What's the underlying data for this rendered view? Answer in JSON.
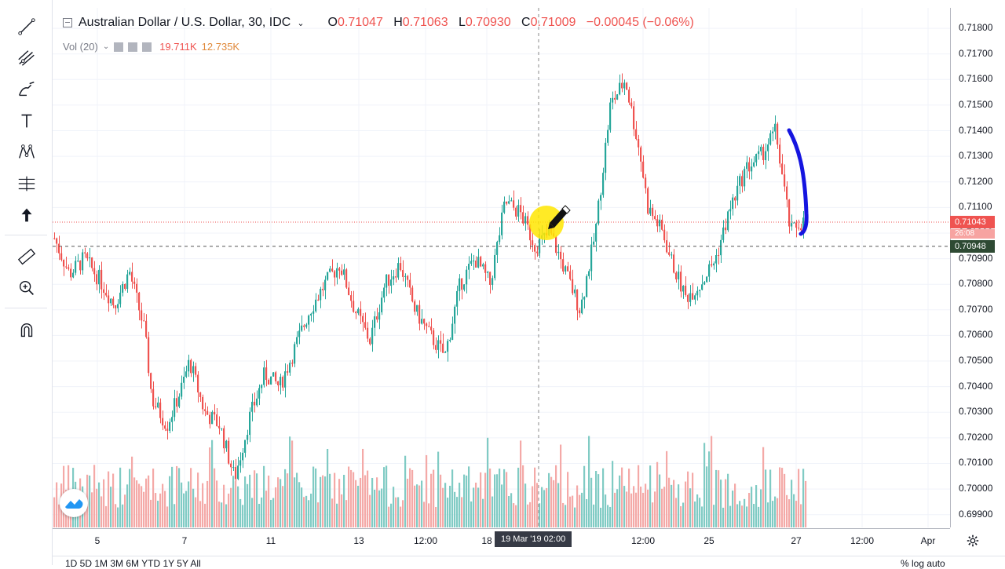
{
  "legend": {
    "symbol": "Australian Dollar / U.S. Dollar, 30, IDC",
    "open_label": "O",
    "open": "0.71047",
    "high_label": "H",
    "high": "0.71063",
    "low_label": "L",
    "low": "0.70930",
    "close_label": "C",
    "close": "0.71009",
    "change": "−0.00045 (−0.06%)"
  },
  "volume_legend": {
    "label": "Vol (20)",
    "value1": "19.711K",
    "value2": "12.735K"
  },
  "price_axis": {
    "ticks": [
      "0.71800",
      "0.71700",
      "0.71600",
      "0.71500",
      "0.71400",
      "0.71300",
      "0.71200",
      "0.71100",
      "0.71000",
      "0.70900",
      "0.70800",
      "0.70700",
      "0.70600",
      "0.70500",
      "0.70400",
      "0.70300",
      "0.70200",
      "0.70100",
      "0.70000",
      "0.69900"
    ],
    "current_price": "0.71043",
    "countdown": "26:08",
    "crosshair_price": "0.70948"
  },
  "time_axis": {
    "ticks": [
      "5",
      "7",
      "11",
      "13",
      "12:00",
      "18",
      "12:00",
      "25",
      "27",
      "12:00",
      "Apr"
    ],
    "crosshair_time": "19 Mar '19   02:00"
  },
  "bottom_bar": {
    "left": "1D  5D  1M  3M  6M  YTD  1Y  5Y  All",
    "right": "%  log  auto"
  },
  "colors": {
    "up": "#26a69a",
    "down": "#ef5350",
    "up_volume": "#80cbc4",
    "down_volume": "#f4a9a7",
    "current_line": "#ef5350",
    "crosshair_label": "#363a45",
    "crosshair_price_bg": "#2e4a33",
    "annotation": "#1515e0",
    "highlight": "#ffe600"
  },
  "toolbar": {
    "tools": [
      "trend-line-icon",
      "pitchfork-icon",
      "brush-icon",
      "text-icon",
      "pattern-icon",
      "measure-projection-icon",
      "arrow-up-icon",
      "ruler-icon",
      "zoom-in-icon",
      "magnet-icon"
    ]
  },
  "chart_data": {
    "type": "candlestick",
    "title": "Australian Dollar / U.S. Dollar, 30, IDC",
    "ylim": [
      0.6985,
      0.7188
    ],
    "x_ticks": [
      "5",
      "7",
      "11",
      "13",
      "12:00",
      "18",
      "12:00",
      "25",
      "27",
      "12:00",
      "Apr"
    ],
    "price_path": [
      [
        0,
        0.7098
      ],
      [
        0.02,
        0.7084
      ],
      [
        0.04,
        0.709
      ],
      [
        0.06,
        0.7082
      ],
      [
        0.08,
        0.7072
      ],
      [
        0.1,
        0.7085
      ],
      [
        0.12,
        0.7062
      ],
      [
        0.13,
        0.7035
      ],
      [
        0.15,
        0.7025
      ],
      [
        0.17,
        0.704
      ],
      [
        0.18,
        0.705
      ],
      [
        0.2,
        0.703
      ],
      [
        0.22,
        0.7025
      ],
      [
        0.24,
        0.7004
      ],
      [
        0.26,
        0.7028
      ],
      [
        0.28,
        0.7045
      ],
      [
        0.3,
        0.704
      ],
      [
        0.32,
        0.7055
      ],
      [
        0.34,
        0.707
      ],
      [
        0.36,
        0.708
      ],
      [
        0.38,
        0.7088
      ],
      [
        0.4,
        0.707
      ],
      [
        0.42,
        0.7058
      ],
      [
        0.44,
        0.708
      ],
      [
        0.46,
        0.7088
      ],
      [
        0.48,
        0.707
      ],
      [
        0.5,
        0.706
      ],
      [
        0.52,
        0.7052
      ],
      [
        0.54,
        0.708
      ],
      [
        0.56,
        0.709
      ],
      [
        0.58,
        0.708
      ],
      [
        0.6,
        0.7112
      ],
      [
        0.62,
        0.7108
      ],
      [
        0.64,
        0.7095
      ],
      [
        0.66,
        0.71
      ],
      [
        0.68,
        0.7085
      ],
      [
        0.7,
        0.707
      ],
      [
        0.72,
        0.71
      ],
      [
        0.74,
        0.715
      ],
      [
        0.76,
        0.716
      ],
      [
        0.78,
        0.713
      ],
      [
        0.79,
        0.711
      ],
      [
        0.81,
        0.71
      ],
      [
        0.82,
        0.709
      ],
      [
        0.84,
        0.7075
      ],
      [
        0.86,
        0.708
      ],
      [
        0.88,
        0.709
      ],
      [
        0.9,
        0.711
      ],
      [
        0.92,
        0.7125
      ],
      [
        0.94,
        0.713
      ],
      [
        0.96,
        0.714
      ],
      [
        0.97,
        0.712
      ],
      [
        0.98,
        0.71
      ],
      [
        0.99,
        0.7104
      ]
    ],
    "current_price": 0.71043,
    "crosshair_price": 0.70948
  }
}
